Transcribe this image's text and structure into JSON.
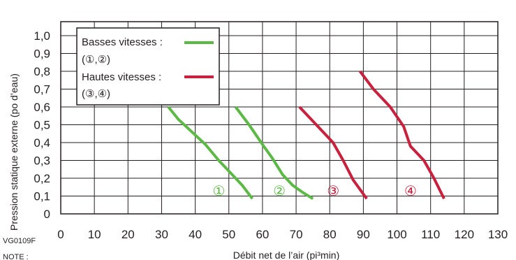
{
  "chart_data": {
    "type": "line",
    "xlabel": "Débit net de l’air (pi³min)",
    "ylabel": "Pression statique externe (po d’eau)",
    "figure_code": "VG0109F",
    "footer_fragment": "NOTE :",
    "xlim": [
      0,
      130
    ],
    "ylim": [
      0,
      1.0
    ],
    "x_ticks": [
      "0",
      "10",
      "20",
      "30",
      "40",
      "50",
      "60",
      "70",
      "80",
      "90",
      "100",
      "110",
      "120",
      "130"
    ],
    "y_ticks": [
      "0",
      "0,1",
      "0,2",
      "0,3",
      "0,4",
      "0,5",
      "0,6",
      "0,7",
      "0,8",
      "0,9",
      "1,0"
    ],
    "grid": true,
    "legend": {
      "placement": "top-left",
      "items": [
        {
          "text": "Basses vitesses :",
          "sub": "(①,②)",
          "color": "#5cb946"
        },
        {
          "text": "Hautes vitesses :",
          "sub": "(③,④)",
          "color": "#c8203d"
        }
      ]
    },
    "series": [
      {
        "label": "①",
        "color": "#5cb946",
        "points": [
          [
            32,
            0.6
          ],
          [
            35,
            0.53
          ],
          [
            39,
            0.46
          ],
          [
            43,
            0.39
          ],
          [
            47,
            0.3
          ],
          [
            51,
            0.22
          ],
          [
            54,
            0.16
          ],
          [
            57,
            0.085
          ]
        ]
      },
      {
        "label": "②",
        "color": "#5cb946",
        "points": [
          [
            52,
            0.6
          ],
          [
            56,
            0.5
          ],
          [
            60,
            0.39
          ],
          [
            63,
            0.31
          ],
          [
            66,
            0.22
          ],
          [
            69,
            0.16
          ],
          [
            72,
            0.12
          ],
          [
            75,
            0.085
          ]
        ]
      },
      {
        "label": "③",
        "color": "#c8203d",
        "points": [
          [
            71,
            0.6
          ],
          [
            76,
            0.5
          ],
          [
            81,
            0.4
          ],
          [
            84,
            0.3
          ],
          [
            87,
            0.19
          ],
          [
            91,
            0.085
          ]
        ]
      },
      {
        "label": "④",
        "color": "#c8203d",
        "points": [
          [
            89,
            0.8
          ],
          [
            93,
            0.7
          ],
          [
            98,
            0.6
          ],
          [
            102,
            0.49
          ],
          [
            104,
            0.38
          ],
          [
            108,
            0.3
          ],
          [
            111,
            0.2
          ],
          [
            114,
            0.085
          ]
        ]
      }
    ]
  }
}
